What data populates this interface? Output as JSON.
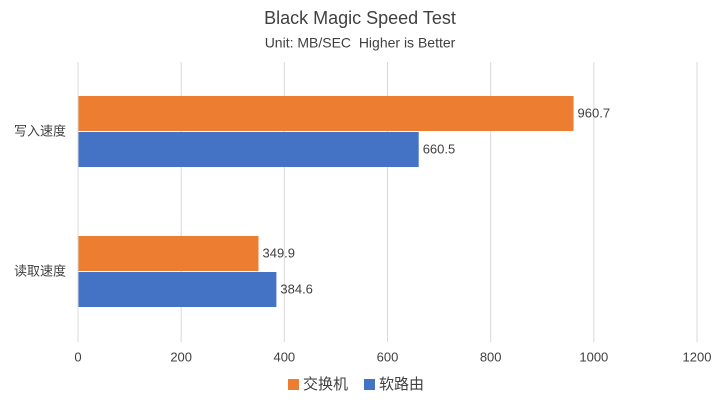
{
  "chart_data": {
    "type": "hbar",
    "title": "Black Magic Speed Test",
    "subtitle": "Unit: MB/SEC  Higher is Better",
    "categories": [
      "写入速度",
      "读取速度"
    ],
    "series": [
      {
        "name": "交换机",
        "color": "#ed7d31",
        "values": [
          960.7,
          349.9
        ]
      },
      {
        "name": "软路由",
        "color": "#4472c4",
        "values": [
          660.5,
          384.6
        ]
      }
    ],
    "xlim": [
      0,
      1200
    ],
    "xticks": [
      0,
      200,
      400,
      600,
      800,
      1000,
      1200
    ],
    "grid": true,
    "legend": "bottom"
  }
}
